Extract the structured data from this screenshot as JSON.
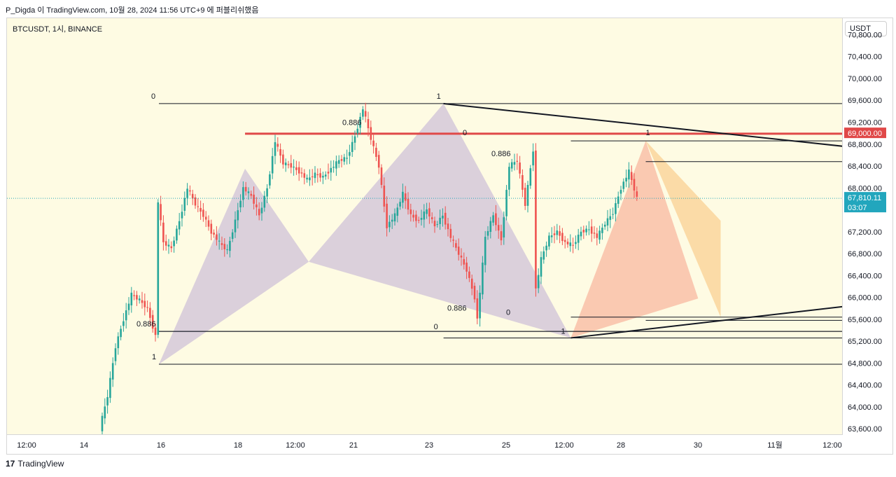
{
  "header": {
    "text": "P_Digda 이 TradingView.com, 10월 28, 2024 11:56 UTC+9 에 퍼블리쉬했음"
  },
  "symbol": {
    "label": "BTCUSDT, 1시, BINANCE"
  },
  "currency_button": {
    "label": "USDT"
  },
  "footer": {
    "brand": "TradingView",
    "logo_mark": "17"
  },
  "colors": {
    "background": "#fefbe3",
    "up": "#26a69a",
    "down": "#ef5350",
    "red_line": "#e04848",
    "triangle_purple": "#c3b4d6",
    "triangle_red": "#f7a88f",
    "triangle_orange": "#f8c77f"
  },
  "chart_data": {
    "type": "candlestick",
    "symbol": "BTCUSDT",
    "interval": "1시",
    "exchange": "BINANCE",
    "ylim": [
      63500,
      71100
    ],
    "price_ticks": [
      "63,600.00",
      "64,000.00",
      "64,400.00",
      "64,800.00",
      "65,200.00",
      "65,600.00",
      "66,000.00",
      "66,400.00",
      "66,800.00",
      "67,200.00",
      "68,000.00",
      "68,400.00",
      "68,800.00",
      "69,200.00",
      "69,600.00",
      "70,000.00",
      "70,400.00",
      "70,800.00"
    ],
    "time_ticks": [
      "12:00",
      "14",
      "16",
      "18",
      "12:00",
      "21",
      "23",
      "25",
      "12:00",
      "28",
      "30",
      "11월",
      "12:00"
    ],
    "current_price": {
      "value": "67,810.11",
      "countdown": "03:07"
    },
    "highlight_level": {
      "value": "69,000.00"
    },
    "price_path": [
      [
        0,
        63600
      ],
      [
        3,
        64200
      ],
      [
        6,
        65100
      ],
      [
        9,
        65600
      ],
      [
        12,
        66050
      ],
      [
        15,
        65950
      ],
      [
        18,
        65800
      ],
      [
        21,
        65300
      ],
      [
        22,
        67750
      ],
      [
        24,
        67000
      ],
      [
        27,
        66900
      ],
      [
        30,
        67400
      ],
      [
        33,
        68000
      ],
      [
        36,
        67700
      ],
      [
        39,
        67500
      ],
      [
        42,
        67200
      ],
      [
        45,
        67000
      ],
      [
        48,
        66850
      ],
      [
        51,
        67400
      ],
      [
        54,
        68000
      ],
      [
        57,
        67850
      ],
      [
        60,
        67500
      ],
      [
        63,
        68000
      ],
      [
        66,
        68850
      ],
      [
        69,
        68450
      ],
      [
        72,
        68400
      ],
      [
        75,
        68300
      ],
      [
        78,
        68150
      ],
      [
        81,
        68250
      ],
      [
        84,
        68200
      ],
      [
        87,
        68350
      ],
      [
        90,
        68500
      ],
      [
        93,
        68550
      ],
      [
        96,
        68950
      ],
      [
        99,
        69450
      ],
      [
        102,
        68900
      ],
      [
        105,
        68400
      ],
      [
        108,
        67300
      ],
      [
        111,
        67500
      ],
      [
        114,
        67900
      ],
      [
        117,
        67500
      ],
      [
        120,
        67400
      ],
      [
        123,
        67600
      ],
      [
        126,
        67300
      ],
      [
        129,
        67500
      ],
      [
        132,
        67100
      ],
      [
        135,
        66800
      ],
      [
        138,
        66500
      ],
      [
        141,
        66000
      ],
      [
        142,
        65600
      ],
      [
        145,
        67100
      ],
      [
        148,
        67500
      ],
      [
        151,
        67050
      ],
      [
        154,
        68400
      ],
      [
        157,
        68500
      ],
      [
        160,
        67700
      ],
      [
        163,
        68700
      ],
      [
        164,
        66150
      ],
      [
        166,
        66700
      ],
      [
        169,
        67100
      ],
      [
        172,
        67200
      ],
      [
        175,
        67000
      ],
      [
        178,
        66950
      ],
      [
        181,
        67200
      ],
      [
        184,
        67250
      ],
      [
        187,
        67100
      ],
      [
        190,
        67350
      ],
      [
        193,
        67550
      ],
      [
        196,
        68000
      ],
      [
        199,
        68300
      ],
      [
        202,
        67810
      ]
    ],
    "harmonic_patterns": [
      {
        "color": "purple",
        "points": [
          [
            16,
            64780
          ],
          [
            18.3,
            68350
          ],
          [
            20,
            66650
          ],
          [
            23.6,
            69540
          ],
          [
            27,
            65260
          ]
        ]
      },
      {
        "color": "red",
        "points": [
          [
            27,
            65260
          ],
          [
            29,
            68860
          ],
          [
            30.4,
            65980
          ]
        ]
      },
      {
        "color": "orange",
        "points": [
          [
            29,
            68860
          ],
          [
            31,
            65640
          ],
          [
            31,
            67400
          ],
          [
            33.7,
            68480
          ]
        ]
      }
    ],
    "horizontal_levels": [
      {
        "price": 69540,
        "from_x": 16,
        "left_label": "0",
        "right_label": "1",
        "label_at_x": 23.6
      },
      {
        "price": 68990,
        "from_x": 18.3,
        "color": "red"
      },
      {
        "price": 68860,
        "from_x": 27,
        "left_label": "0",
        "right_label": "1",
        "right_label_x": 29
      },
      {
        "price": 68480,
        "from_x": 29,
        "label": "0.886"
      },
      {
        "price": 65380,
        "from_x": 16,
        "label": "0.886"
      },
      {
        "price": 64780,
        "from_x": 16,
        "label": "1"
      },
      {
        "price": 65380,
        "from_x": 16,
        "left_label": "0",
        "left_label_x": 23.6
      },
      {
        "price": 65260,
        "from_x": 23.6,
        "label": "1",
        "label_x": 27
      },
      {
        "price": 65640,
        "from_x": 27,
        "label": "0.886"
      },
      {
        "price": 65580,
        "from_x": 29,
        "label": "0",
        "label_x": 29
      }
    ],
    "trendlines": [
      {
        "from": [
          23.6,
          69540
        ],
        "to": [
          44,
          68050
        ]
      },
      {
        "from": [
          27,
          65260
        ],
        "to": [
          44,
          66600
        ]
      }
    ]
  }
}
